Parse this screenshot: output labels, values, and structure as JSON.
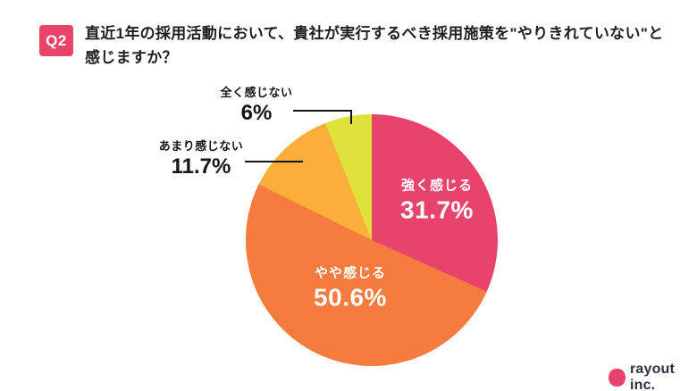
{
  "question": {
    "badge": "Q2",
    "title_line1": "直近1年の採用活動において、貴社が実行するべき採用施策を\"やりきれていない\"と",
    "title_line2": "感じますか？"
  },
  "chart_data": {
    "type": "pie",
    "title": "直近1年の採用活動において、貴社が実行するべき採用施策を\"やりきれていない\"と感じますか？",
    "start_angle_deg": 0,
    "direction": "clockwise",
    "slices": [
      {
        "label": "強く感じる",
        "value": 31.7,
        "display": "31.7%",
        "color": "#E8436A",
        "label_position": "inside"
      },
      {
        "label": "やや感じる",
        "value": 50.6,
        "display": "50.6%",
        "color": "#F57B3E",
        "label_position": "inside"
      },
      {
        "label": "あまり感じない",
        "value": 11.7,
        "display": "11.7%",
        "color": "#FBAE3C",
        "label_position": "outside"
      },
      {
        "label": "全く感じない",
        "value": 6.0,
        "display": "6%",
        "color": "#E0E13A",
        "label_position": "outside"
      }
    ],
    "legend_position": "none",
    "value_label_color_inside": "#ffffff",
    "value_label_color_outside": "#161616"
  },
  "footer": {
    "logo_text": "rayout inc.",
    "logo_color": "#E8436A",
    "logo_text_color": "#2E3044"
  },
  "colors": {
    "background": "#ffffff",
    "accent": "#E8436A",
    "title_text": "#1f1f1f",
    "leader_line": "#141414"
  }
}
